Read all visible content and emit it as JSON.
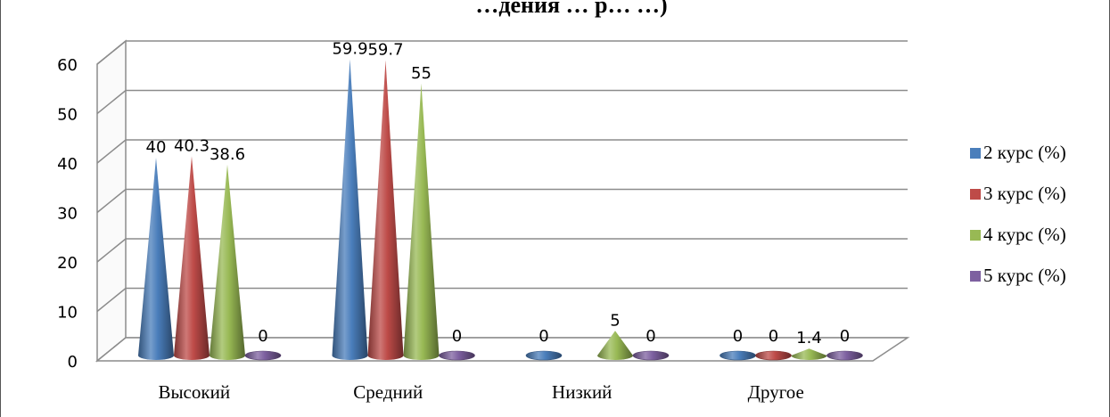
{
  "chart_data": {
    "type": "bar",
    "title": "…дения … р… …)",
    "categories": [
      "Высокий",
      "Средний",
      "Низкий",
      "Другое"
    ],
    "series": [
      {
        "name": "2 курс (%)",
        "values": [
          40,
          59.9,
          0,
          0
        ],
        "labels": [
          "40",
          "59.9",
          "0",
          "0"
        ],
        "color": "#4a7ebb"
      },
      {
        "name": "3 курс (%)",
        "values": [
          40.3,
          59.7,
          null,
          0
        ],
        "labels": [
          "40.3",
          "59.7",
          "",
          "0"
        ],
        "color": "#be4b48"
      },
      {
        "name": "4 курс (%)",
        "values": [
          38.6,
          55,
          5,
          1.4
        ],
        "labels": [
          "38.6",
          "55",
          "5",
          "1.4"
        ],
        "color": "#98b954"
      },
      {
        "name": "5 курс (%)",
        "values": [
          0,
          0,
          0,
          0
        ],
        "labels": [
          "0",
          "0",
          "0",
          "0"
        ],
        "color": "#7d60a0"
      }
    ],
    "y_ticks": [
      "0",
      "10",
      "20",
      "30",
      "40",
      "50",
      "60"
    ],
    "ylim": [
      0,
      60
    ],
    "grid": true,
    "legend": "right",
    "style": "3d-cone"
  }
}
